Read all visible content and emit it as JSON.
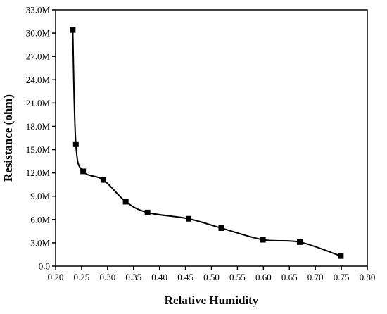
{
  "chart_data": {
    "type": "scatter",
    "title": "",
    "xlabel": "Relative Humidity",
    "ylabel": "Resistance (ohm)",
    "xlim": [
      0.2,
      0.8
    ],
    "ylim": [
      0,
      33000000
    ],
    "x_ticks": [
      0.2,
      0.25,
      0.3,
      0.35,
      0.4,
      0.45,
      0.5,
      0.55,
      0.6,
      0.65,
      0.7,
      0.75,
      0.8
    ],
    "x_tick_labels": [
      "0.20",
      "0.25",
      "0.30",
      "0.35",
      "0.40",
      "0.45",
      "0.50",
      "0.55",
      "0.60",
      "0.65",
      "0.70",
      "0.75",
      "0.80"
    ],
    "y_ticks": [
      0,
      3000000,
      6000000,
      9000000,
      12000000,
      15000000,
      18000000,
      21000000,
      24000000,
      27000000,
      30000000,
      33000000
    ],
    "y_tick_labels": [
      "0.0",
      "3.0M",
      "6.0M",
      "9.0M",
      "12.0M",
      "15.0M",
      "18.0M",
      "21.0M",
      "24.0M",
      "27.0M",
      "30.0M",
      "33.0M"
    ],
    "grid": false,
    "legend": "none",
    "series": [
      {
        "marker": "square",
        "line": "smooth",
        "color": "#000000",
        "x": [
          0.233,
          0.239,
          0.253,
          0.292,
          0.335,
          0.377,
          0.456,
          0.519,
          0.599,
          0.67,
          0.749
        ],
        "y": [
          30400000,
          15700000,
          12200000,
          11100000,
          8300000,
          6900000,
          6100000,
          4900000,
          3400000,
          3100000,
          1300000
        ]
      }
    ]
  }
}
